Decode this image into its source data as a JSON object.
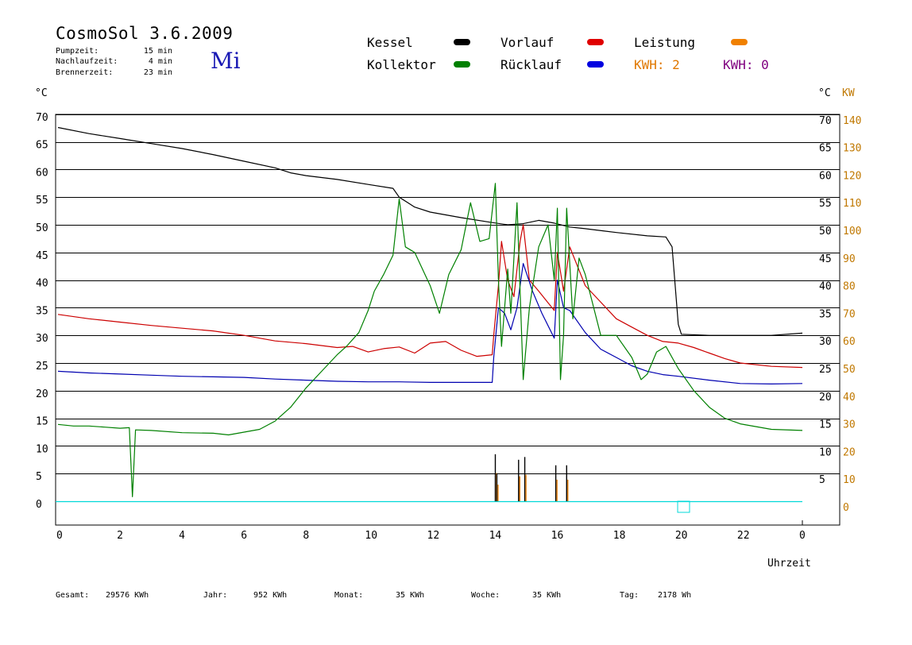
{
  "header": {
    "title": "CosmoSol 3.6.2009",
    "day": "Mi",
    "info": [
      {
        "label": "Pumpzeit:",
        "value": "15 min"
      },
      {
        "label": "Nachlaufzeit:",
        "value": "4 min"
      },
      {
        "label": "Brennerzeit:",
        "value": "23 min"
      }
    ]
  },
  "legend": {
    "kessel": "Kessel",
    "kollektor": "Kollektor",
    "vorlauf": "Vorlauf",
    "ruecklauf": "Rücklauf",
    "leistung": "Leistung",
    "kwh1": "KWH: 2",
    "kwh2": "KWH: 0"
  },
  "footer": {
    "gesamt_label": "Gesamt:",
    "gesamt_value": "29576 KWh",
    "jahr_label": "Jahr:",
    "jahr_value": "952 KWh",
    "monat_label": "Monat:",
    "monat_value": "35 KWh",
    "woche_label": "Woche:",
    "woche_value": "35 KWh",
    "tag_label": "Tag:",
    "tag_value": "2178 Wh"
  },
  "colors": {
    "kessel": "#000000",
    "kollektor": "#008000",
    "vorlauf": "#cc0000",
    "ruecklauf": "#0000b0",
    "leistung": "#e07800",
    "kwh2": "#800080",
    "baseline": "#00d8d8",
    "kw_axis": "#c07800"
  },
  "chart_data": {
    "type": "line",
    "xlabel": "Uhrzeit",
    "left_axis_unit": "°C",
    "right_axis_unit_c": "°C",
    "right_axis_unit_kw": "KW",
    "x_ticks": [
      "0",
      "2",
      "4",
      "6",
      "8",
      "10",
      "12",
      "14",
      "16",
      "18",
      "20",
      "22",
      "0"
    ],
    "y_ticks_left": [
      0,
      5,
      10,
      15,
      20,
      25,
      30,
      35,
      40,
      45,
      50,
      55,
      60,
      65,
      70
    ],
    "y_ticks_right_c": [
      5,
      10,
      15,
      20,
      25,
      30,
      35,
      40,
      45,
      50,
      55,
      60,
      65,
      70
    ],
    "y_ticks_kw": [
      0,
      10,
      20,
      30,
      40,
      50,
      60,
      70,
      80,
      90,
      100,
      110,
      120,
      130,
      140
    ],
    "xlim": [
      0,
      24
    ],
    "ylim": [
      0,
      70
    ],
    "series": [
      {
        "name": "Kessel",
        "color": "#000000",
        "points": [
          [
            0,
            67.6
          ],
          [
            1,
            66.5
          ],
          [
            2,
            65.6
          ],
          [
            3,
            64.7
          ],
          [
            4,
            63.8
          ],
          [
            5,
            62.7
          ],
          [
            6,
            61.5
          ],
          [
            7,
            60.3
          ],
          [
            7.5,
            59.4
          ],
          [
            8,
            58.9
          ],
          [
            9,
            58.2
          ],
          [
            10,
            57.3
          ],
          [
            10.8,
            56.6
          ],
          [
            11,
            55.0
          ],
          [
            11.5,
            53.2
          ],
          [
            12,
            52.3
          ],
          [
            13,
            51.3
          ],
          [
            14,
            50.4
          ],
          [
            14.5,
            50.0
          ],
          [
            15,
            50.2
          ],
          [
            15.5,
            50.8
          ],
          [
            16,
            50.3
          ],
          [
            16.5,
            49.6
          ],
          [
            17,
            49.3
          ],
          [
            18,
            48.6
          ],
          [
            19,
            48.0
          ],
          [
            19.6,
            47.8
          ],
          [
            19.8,
            46.0
          ],
          [
            20.0,
            32.0
          ],
          [
            20.1,
            30.2
          ],
          [
            21,
            30.0
          ],
          [
            22,
            30.0
          ],
          [
            23,
            30.0
          ],
          [
            24,
            30.4
          ]
        ]
      },
      {
        "name": "Vorlauf",
        "color": "#cc0000",
        "points": [
          [
            0,
            33.8
          ],
          [
            1,
            33.0
          ],
          [
            2,
            32.4
          ],
          [
            3,
            31.8
          ],
          [
            4,
            31.3
          ],
          [
            5,
            30.8
          ],
          [
            6,
            30.0
          ],
          [
            7,
            29.0
          ],
          [
            8,
            28.5
          ],
          [
            9,
            27.8
          ],
          [
            9.5,
            28.0
          ],
          [
            10,
            27.0
          ],
          [
            10.5,
            27.6
          ],
          [
            11,
            27.9
          ],
          [
            11.5,
            26.8
          ],
          [
            12,
            28.6
          ],
          [
            12.5,
            28.9
          ],
          [
            13,
            27.3
          ],
          [
            13.5,
            26.2
          ],
          [
            14,
            26.5
          ],
          [
            14.05,
            30.0
          ],
          [
            14.2,
            39.0
          ],
          [
            14.3,
            47.0
          ],
          [
            14.5,
            40.0
          ],
          [
            14.7,
            37.0
          ],
          [
            14.9,
            47.0
          ],
          [
            15.0,
            50.0
          ],
          [
            15.2,
            40.0
          ],
          [
            15.5,
            38.0
          ],
          [
            16,
            34.5
          ],
          [
            16.1,
            45.0
          ],
          [
            16.3,
            38.0
          ],
          [
            16.5,
            46.0
          ],
          [
            17,
            39.0
          ],
          [
            17.5,
            36.0
          ],
          [
            18,
            33.0
          ],
          [
            18.5,
            31.5
          ],
          [
            19,
            30.0
          ],
          [
            19.5,
            28.9
          ],
          [
            20,
            28.6
          ],
          [
            20.5,
            27.8
          ],
          [
            21,
            26.8
          ],
          [
            21.5,
            25.8
          ],
          [
            22,
            25.0
          ],
          [
            23,
            24.4
          ],
          [
            24,
            24.2
          ]
        ]
      },
      {
        "name": "Rücklauf",
        "color": "#0000b0",
        "points": [
          [
            0,
            23.5
          ],
          [
            1,
            23.2
          ],
          [
            2,
            23.0
          ],
          [
            3,
            22.8
          ],
          [
            4,
            22.6
          ],
          [
            5,
            22.5
          ],
          [
            6,
            22.4
          ],
          [
            7,
            22.1
          ],
          [
            8,
            21.9
          ],
          [
            9,
            21.7
          ],
          [
            10,
            21.6
          ],
          [
            11,
            21.6
          ],
          [
            12,
            21.5
          ],
          [
            13,
            21.5
          ],
          [
            14,
            21.5
          ],
          [
            14.05,
            26.0
          ],
          [
            14.2,
            35.0
          ],
          [
            14.4,
            34.0
          ],
          [
            14.6,
            31.0
          ],
          [
            14.8,
            35.0
          ],
          [
            15.0,
            43.0
          ],
          [
            15.3,
            38.0
          ],
          [
            15.6,
            34.0
          ],
          [
            16,
            29.5
          ],
          [
            16.1,
            40.0
          ],
          [
            16.3,
            35.0
          ],
          [
            16.5,
            34.5
          ],
          [
            17,
            30.5
          ],
          [
            17.5,
            27.5
          ],
          [
            18,
            26.0
          ],
          [
            18.5,
            24.5
          ],
          [
            19,
            23.5
          ],
          [
            19.5,
            22.9
          ],
          [
            20,
            22.6
          ],
          [
            21,
            21.9
          ],
          [
            22,
            21.3
          ],
          [
            23,
            21.2
          ],
          [
            24,
            21.3
          ]
        ]
      },
      {
        "name": "Kollektor",
        "color": "#008000",
        "points": [
          [
            0,
            13.9
          ],
          [
            0.5,
            13.6
          ],
          [
            1,
            13.6
          ],
          [
            1.5,
            13.4
          ],
          [
            2,
            13.2
          ],
          [
            2.3,
            13.3
          ],
          [
            2.4,
            0.8
          ],
          [
            2.5,
            12.9
          ],
          [
            3,
            12.8
          ],
          [
            4,
            12.4
          ],
          [
            5,
            12.3
          ],
          [
            5.5,
            12.0
          ],
          [
            6,
            12.5
          ],
          [
            6.5,
            13.0
          ],
          [
            7,
            14.5
          ],
          [
            7.5,
            17.0
          ],
          [
            8,
            20.5
          ],
          [
            8.5,
            23.5
          ],
          [
            9,
            26.5
          ],
          [
            9.3,
            28.0
          ],
          [
            9.7,
            30.5
          ],
          [
            10,
            34.5
          ],
          [
            10.2,
            38.0
          ],
          [
            10.5,
            41.0
          ],
          [
            10.8,
            44.5
          ],
          [
            11,
            54.7
          ],
          [
            11.2,
            46.0
          ],
          [
            11.5,
            45.0
          ],
          [
            12,
            39.0
          ],
          [
            12.3,
            34.0
          ],
          [
            12.6,
            41.0
          ],
          [
            13,
            45.5
          ],
          [
            13.3,
            54.0
          ],
          [
            13.6,
            47.0
          ],
          [
            13.9,
            47.5
          ],
          [
            14.1,
            57.5
          ],
          [
            14.2,
            40.0
          ],
          [
            14.3,
            28.0
          ],
          [
            14.5,
            42.0
          ],
          [
            14.6,
            34.0
          ],
          [
            14.8,
            54.0
          ],
          [
            15.0,
            22.0
          ],
          [
            15.2,
            35.0
          ],
          [
            15.5,
            46.0
          ],
          [
            15.8,
            50.0
          ],
          [
            16.0,
            40.0
          ],
          [
            16.1,
            53.0
          ],
          [
            16.2,
            22.0
          ],
          [
            16.3,
            30.0
          ],
          [
            16.4,
            53.0
          ],
          [
            16.6,
            33.0
          ],
          [
            16.8,
            44.0
          ],
          [
            17.0,
            41.0
          ],
          [
            17.5,
            30.0
          ],
          [
            18,
            30.0
          ],
          [
            18.5,
            26.0
          ],
          [
            18.8,
            22.0
          ],
          [
            19.0,
            23.0
          ],
          [
            19.3,
            27.0
          ],
          [
            19.6,
            28.0
          ],
          [
            20,
            24.0
          ],
          [
            20.5,
            20.0
          ],
          [
            21,
            17.0
          ],
          [
            21.5,
            15.0
          ],
          [
            22,
            14.0
          ],
          [
            23,
            13.0
          ],
          [
            24,
            12.8
          ]
        ]
      }
    ],
    "power_spikes": [
      {
        "x": 14.1,
        "y": 8.5
      },
      {
        "x": 14.15,
        "y": 5.0
      },
      {
        "x": 14.85,
        "y": 7.5
      },
      {
        "x": 15.05,
        "y": 8.0
      },
      {
        "x": 16.05,
        "y": 6.5
      },
      {
        "x": 16.4,
        "y": 6.5
      }
    ]
  }
}
